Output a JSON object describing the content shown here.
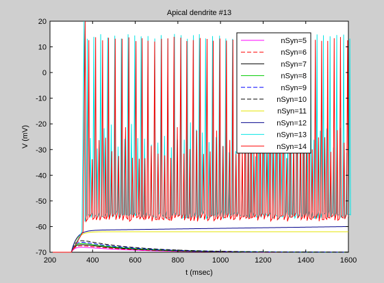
{
  "chart_data": {
    "type": "line",
    "title": "Apical dendrite #13",
    "xlabel": "t (msec)",
    "ylabel": "V (mV)",
    "xlim": [
      200,
      1600
    ],
    "ylim": [
      -70,
      20
    ],
    "xticks": [
      200,
      400,
      600,
      800,
      1000,
      1200,
      1400,
      1600
    ],
    "yticks": [
      20,
      10,
      0,
      -10,
      -20,
      -30,
      -40,
      -50,
      -60,
      -70
    ],
    "grid": false,
    "legend_position": "top-right",
    "stimulus_onset_ms": 300,
    "series": [
      {
        "name": "nSyn=5",
        "color": "#ff00ff",
        "dash": "solid",
        "kind": "subthreshold",
        "peak_mV": -67.5
      },
      {
        "name": "nSyn=6",
        "color": "#ff0000",
        "dash": "dashed",
        "kind": "subthreshold",
        "peak_mV": -66.8
      },
      {
        "name": "nSyn=7",
        "color": "#000000",
        "dash": "solid",
        "kind": "subthreshold",
        "peak_mV": -66.2
      },
      {
        "name": "nSyn=8",
        "color": "#00cc00",
        "dash": "solid",
        "kind": "subthreshold",
        "peak_mV": -65.6
      },
      {
        "name": "nSyn=9",
        "color": "#0000ff",
        "dash": "dashed",
        "kind": "subthreshold",
        "peak_mV": -65.0
      },
      {
        "name": "nSyn=10",
        "color": "#000000",
        "dash": "dashed",
        "kind": "subthreshold",
        "peak_mV": -64.2
      },
      {
        "name": "nSyn=11",
        "color": "#e6e600",
        "dash": "solid",
        "kind": "plateau",
        "plateau_mV": -62.0
      },
      {
        "name": "nSyn=12",
        "color": "#00008b",
        "dash": "solid",
        "kind": "plateau",
        "plateau_mV": -61.5,
        "end_mV": -60.0
      },
      {
        "name": "nSyn=13",
        "color": "#00e5e5",
        "dash": "solid",
        "kind": "spiking",
        "spike_start_ms": 360,
        "peak_mV": 15,
        "trough_mV": -55,
        "mid_mV": -26
      },
      {
        "name": "nSyn=14",
        "color": "#ff0000",
        "dash": "solid",
        "kind": "spiking",
        "spike_start_ms": 365,
        "peak_mV": 14,
        "trough_mV": -56,
        "mid_mV": -27
      }
    ]
  }
}
